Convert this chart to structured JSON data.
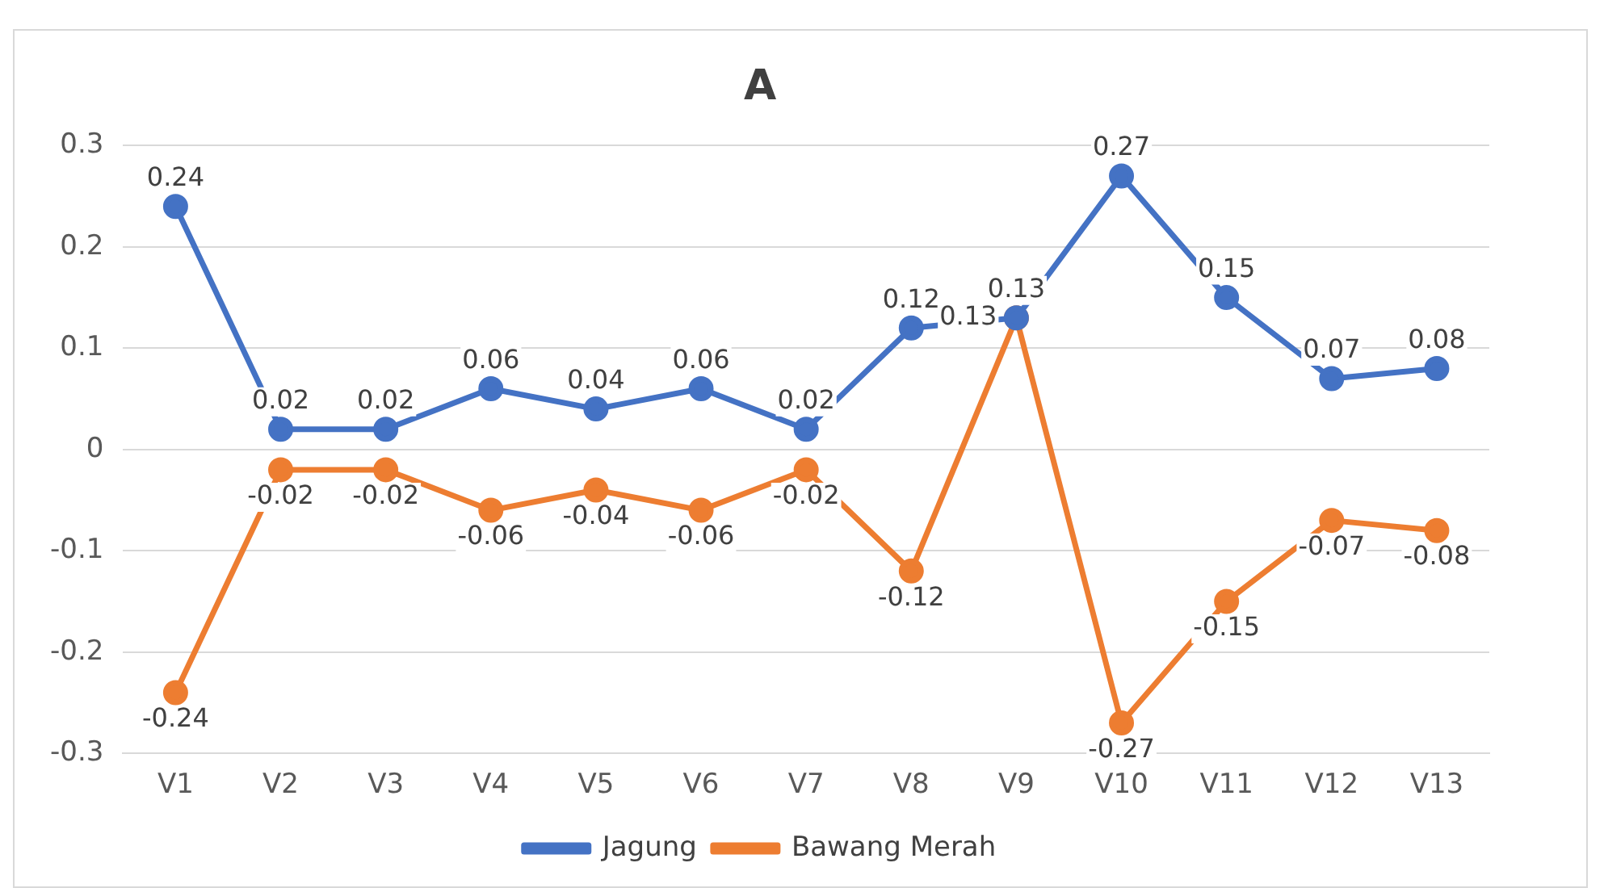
{
  "chart_data": {
    "type": "line",
    "title": "A",
    "categories": [
      "V1",
      "V2",
      "V3",
      "V4",
      "V5",
      "V6",
      "V7",
      "V8",
      "V9",
      "V10",
      "V11",
      "V12",
      "V13"
    ],
    "series": [
      {
        "name": "Jagung",
        "color": "#4472c4",
        "values": [
          0.24,
          0.02,
          0.02,
          0.06,
          0.04,
          0.06,
          0.02,
          0.12,
          0.13,
          0.27,
          0.15,
          0.07,
          0.08
        ]
      },
      {
        "name": "Bawang Merah",
        "color": "#ed7d31",
        "values": [
          -0.24,
          -0.02,
          -0.02,
          -0.06,
          -0.04,
          -0.06,
          -0.02,
          -0.12,
          0.13,
          -0.27,
          -0.15,
          -0.07,
          -0.08
        ]
      }
    ],
    "ylim": [
      -0.3,
      0.3
    ],
    "yticks": [
      -0.3,
      -0.2,
      -0.1,
      0,
      0.1,
      0.2,
      0.3
    ],
    "grid": "y",
    "legend": "bottom",
    "marker": "circle",
    "line_style": "solid",
    "data_labels": true
  }
}
